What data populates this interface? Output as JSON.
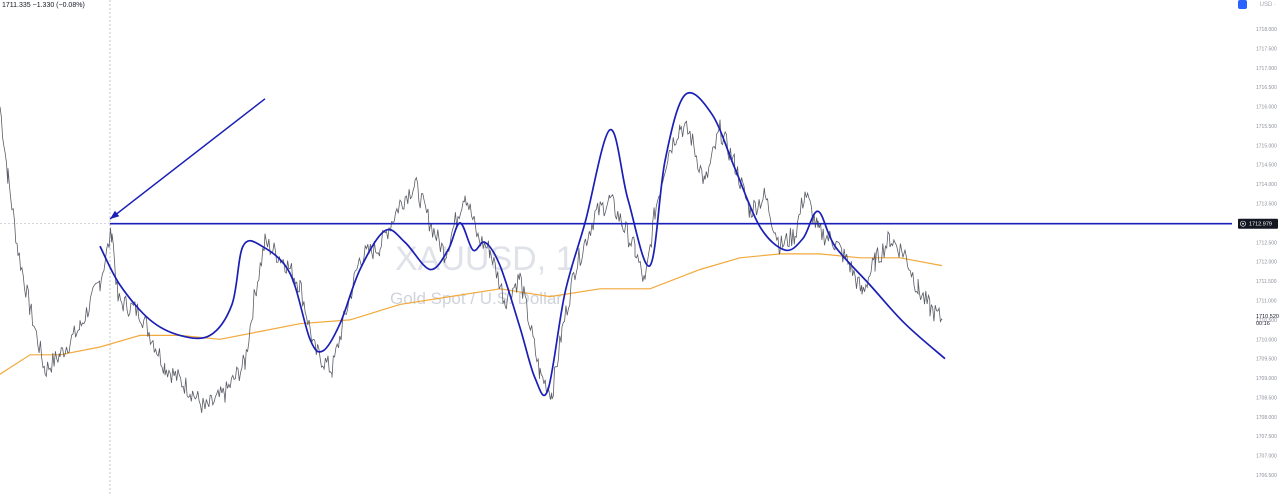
{
  "header": {
    "ohlc_summary": "1711.335 −1.330 (−0.08%)",
    "top_right_label": "USD ·"
  },
  "colors": {
    "background": "#ffffff",
    "price_line": "#5a5d66",
    "moving_average": "#f2a93b",
    "drawing": "#1a1fb5",
    "badge": "#131722",
    "axis_text": "#8a8f99",
    "accent": "#2962ff"
  },
  "icons": {
    "settings": "settings-square-icon",
    "badge_marker": "target-icon"
  },
  "chart_data": {
    "type": "line",
    "symbol": "XAUUSD, 1",
    "description": "Gold Spot / U.S. Dollar",
    "y_axis": {
      "ticks": [
        "1718.000",
        "1717.500",
        "1717.000",
        "1716.500",
        "1716.000",
        "1715.500",
        "1715.000",
        "1714.500",
        "1714.000",
        "1713.500",
        "1713.000",
        "1712.500",
        "1712.000",
        "1711.500",
        "1711.000",
        "1710.500",
        "1710.000",
        "1709.500",
        "1709.000",
        "1708.500",
        "1708.000",
        "1707.500",
        "1707.000",
        "1706.500"
      ],
      "range": [
        1706.4,
        1718.2
      ],
      "scale": "linear"
    },
    "horizontal_level": {
      "value": 1712.979,
      "label": "1712.979"
    },
    "last_price": {
      "value": 1710.52,
      "label": "1710.520",
      "countdown": "00:16"
    },
    "price_series_keypoints": [
      [
        0,
        1716.0
      ],
      [
        8,
        1714.2
      ],
      [
        18,
        1712.3
      ],
      [
        30,
        1710.8
      ],
      [
        45,
        1709.2
      ],
      [
        60,
        1709.6
      ],
      [
        80,
        1710.3
      ],
      [
        100,
        1711.5
      ],
      [
        112,
        1712.8
      ],
      [
        118,
        1711.0
      ],
      [
        140,
        1710.7
      ],
      [
        165,
        1709.3
      ],
      [
        190,
        1708.7
      ],
      [
        205,
        1708.2
      ],
      [
        225,
        1708.6
      ],
      [
        245,
        1709.4
      ],
      [
        255,
        1711.2
      ],
      [
        265,
        1712.5
      ],
      [
        285,
        1712.0
      ],
      [
        300,
        1711.4
      ],
      [
        315,
        1709.7
      ],
      [
        332,
        1709.2
      ],
      [
        345,
        1710.6
      ],
      [
        360,
        1712.1
      ],
      [
        380,
        1712.4
      ],
      [
        400,
        1713.5
      ],
      [
        415,
        1714.0
      ],
      [
        430,
        1713.0
      ],
      [
        445,
        1712.2
      ],
      [
        465,
        1713.8
      ],
      [
        478,
        1712.6
      ],
      [
        490,
        1712.3
      ],
      [
        505,
        1711.0
      ],
      [
        520,
        1711.6
      ],
      [
        540,
        1709.1
      ],
      [
        552,
        1708.6
      ],
      [
        562,
        1710.2
      ],
      [
        575,
        1711.8
      ],
      [
        595,
        1713.2
      ],
      [
        610,
        1713.6
      ],
      [
        622,
        1713.0
      ],
      [
        635,
        1712.3
      ],
      [
        645,
        1711.4
      ],
      [
        655,
        1713.3
      ],
      [
        668,
        1714.8
      ],
      [
        680,
        1715.5
      ],
      [
        690,
        1715.3
      ],
      [
        705,
        1714.0
      ],
      [
        720,
        1715.4
      ],
      [
        735,
        1714.5
      ],
      [
        750,
        1713.3
      ],
      [
        765,
        1713.7
      ],
      [
        780,
        1712.4
      ],
      [
        795,
        1712.7
      ],
      [
        805,
        1713.8
      ],
      [
        818,
        1712.8
      ],
      [
        835,
        1712.5
      ],
      [
        850,
        1711.9
      ],
      [
        862,
        1711.2
      ],
      [
        875,
        1712.0
      ],
      [
        890,
        1712.6
      ],
      [
        905,
        1712.2
      ],
      [
        918,
        1711.3
      ],
      [
        930,
        1710.8
      ],
      [
        942,
        1710.5
      ]
    ],
    "moving_average_keypoints": [
      [
        0,
        1709.1
      ],
      [
        30,
        1709.6
      ],
      [
        60,
        1709.6
      ],
      [
        100,
        1709.8
      ],
      [
        140,
        1710.1
      ],
      [
        180,
        1710.1
      ],
      [
        220,
        1710.0
      ],
      [
        260,
        1710.2
      ],
      [
        300,
        1710.4
      ],
      [
        350,
        1710.5
      ],
      [
        400,
        1710.9
      ],
      [
        450,
        1711.1
      ],
      [
        500,
        1711.3
      ],
      [
        550,
        1711.1
      ],
      [
        600,
        1711.3
      ],
      [
        650,
        1711.3
      ],
      [
        700,
        1711.8
      ],
      [
        740,
        1712.1
      ],
      [
        780,
        1712.2
      ],
      [
        820,
        1712.2
      ],
      [
        860,
        1712.1
      ],
      [
        900,
        1712.1
      ],
      [
        942,
        1711.9
      ]
    ],
    "hand_drawn_curve_keypoints": [
      [
        100,
        1712.4
      ],
      [
        120,
        1711.4
      ],
      [
        150,
        1710.5
      ],
      [
        180,
        1710.1
      ],
      [
        210,
        1710.1
      ],
      [
        232,
        1710.9
      ],
      [
        243,
        1712.4
      ],
      [
        262,
        1712.4
      ],
      [
        290,
        1711.7
      ],
      [
        310,
        1710.0
      ],
      [
        323,
        1709.7
      ],
      [
        340,
        1710.4
      ],
      [
        360,
        1711.8
      ],
      [
        385,
        1712.8
      ],
      [
        405,
        1712.5
      ],
      [
        430,
        1711.8
      ],
      [
        448,
        1712.3
      ],
      [
        460,
        1713.0
      ],
      [
        473,
        1712.3
      ],
      [
        485,
        1712.5
      ],
      [
        500,
        1711.9
      ],
      [
        520,
        1710.3
      ],
      [
        535,
        1709.0
      ],
      [
        548,
        1708.7
      ],
      [
        565,
        1711.2
      ],
      [
        585,
        1713.0
      ],
      [
        610,
        1715.4
      ],
      [
        628,
        1713.6
      ],
      [
        650,
        1711.9
      ],
      [
        665,
        1714.6
      ],
      [
        685,
        1716.3
      ],
      [
        712,
        1715.8
      ],
      [
        735,
        1714.4
      ],
      [
        760,
        1712.9
      ],
      [
        785,
        1712.3
      ],
      [
        803,
        1712.6
      ],
      [
        818,
        1713.3
      ],
      [
        835,
        1712.4
      ],
      [
        870,
        1711.4
      ],
      [
        905,
        1710.4
      ],
      [
        945,
        1709.5
      ]
    ],
    "arrow": {
      "from": [
        265,
        1716.2
      ],
      "to": [
        110,
        1713.1
      ]
    },
    "vertical_crosshair_x": 110,
    "grid": false,
    "legend": "none"
  }
}
